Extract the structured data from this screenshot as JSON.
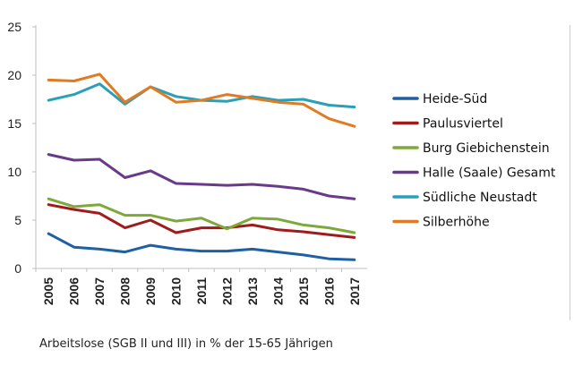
{
  "chart_data": {
    "type": "line",
    "title": "",
    "xlabel": "",
    "ylabel": "",
    "ylim": [
      0,
      25
    ],
    "yticks": [
      "0",
      "5",
      "10",
      "15",
      "20",
      "25"
    ],
    "categories": [
      "2005",
      "2006",
      "2007",
      "2008",
      "2009",
      "2010",
      "2011",
      "2012",
      "2013",
      "2014",
      "2015",
      "2016",
      "2017"
    ],
    "legend_position": "right",
    "series": [
      {
        "name": "Heide-Süd",
        "color": "#1f5fa3",
        "values": [
          3.6,
          2.2,
          2.0,
          1.7,
          2.4,
          2.0,
          1.8,
          1.8,
          2.0,
          1.7,
          1.4,
          1.0,
          0.9
        ]
      },
      {
        "name": "Paulusviertel",
        "color": "#a01b1b",
        "values": [
          6.6,
          6.1,
          5.7,
          4.2,
          5.0,
          3.7,
          4.2,
          4.2,
          4.5,
          4.0,
          3.8,
          3.5,
          3.2
        ]
      },
      {
        "name": "Burg Giebichenstein",
        "color": "#7fa83a",
        "values": [
          7.2,
          6.4,
          6.6,
          5.5,
          5.5,
          4.9,
          5.2,
          4.1,
          5.2,
          5.1,
          4.5,
          4.2,
          3.7
        ]
      },
      {
        "name": "Halle (Saale) Gesamt",
        "color": "#6a3a8a",
        "values": [
          11.8,
          11.2,
          11.3,
          9.4,
          10.1,
          8.8,
          8.7,
          8.6,
          8.7,
          8.5,
          8.2,
          7.5,
          7.2
        ]
      },
      {
        "name": "Südliche Neustadt",
        "color": "#2a9fb8",
        "values": [
          17.4,
          18.0,
          19.1,
          17.0,
          18.8,
          17.8,
          17.4,
          17.3,
          17.8,
          17.4,
          17.5,
          16.9,
          16.7
        ]
      },
      {
        "name": "Silberhöhe",
        "color": "#e07b24",
        "values": [
          19.5,
          19.4,
          20.1,
          17.2,
          18.8,
          17.2,
          17.4,
          18.0,
          17.6,
          17.2,
          17.0,
          15.5,
          14.7
        ]
      }
    ]
  },
  "caption": "Arbeitslose (SGB II und III) in % der 15-65 Jährigen"
}
